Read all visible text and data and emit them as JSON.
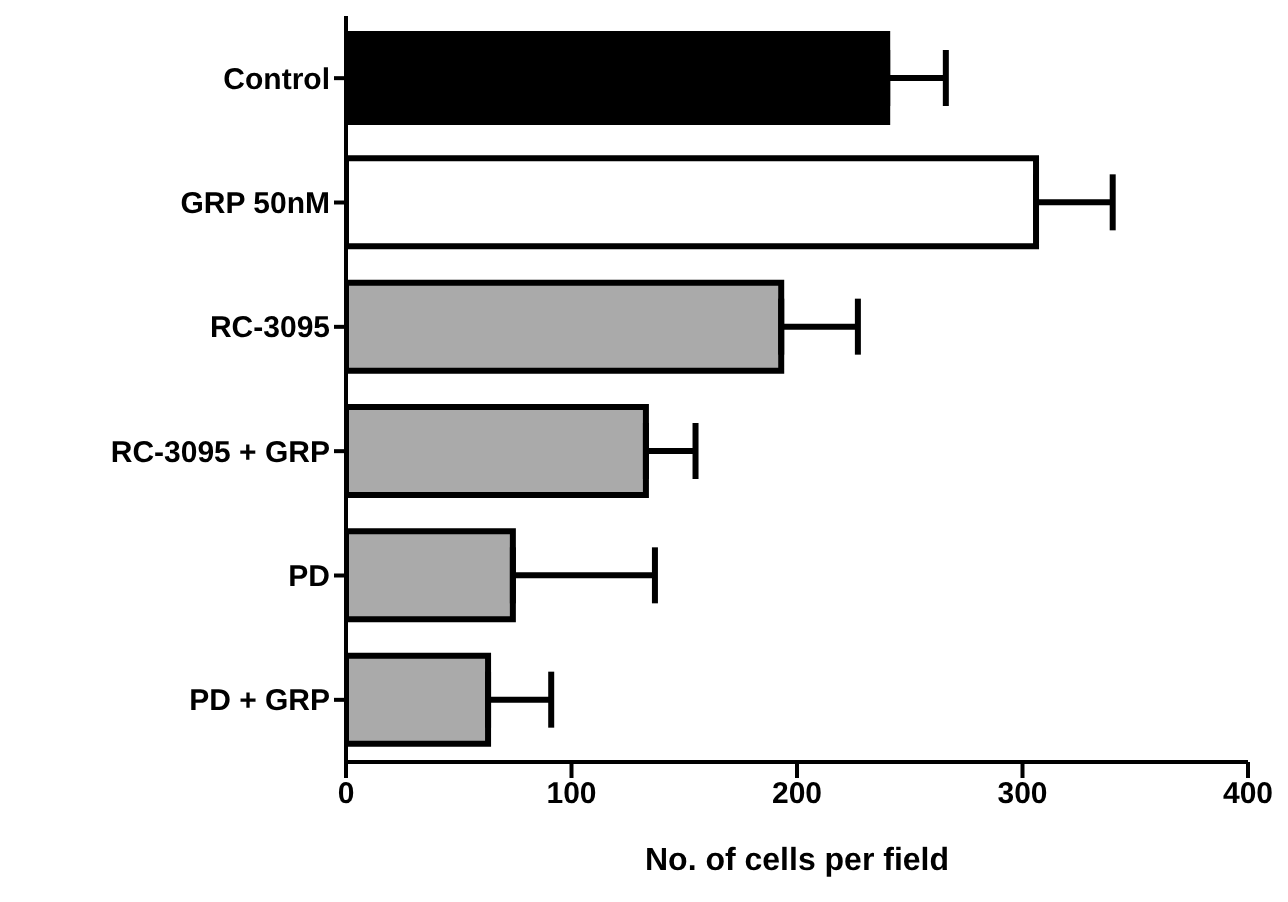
{
  "chart_data": {
    "type": "bar",
    "orientation": "horizontal",
    "xlabel": "No. of cells per field",
    "categories": [
      "Control",
      "GRP 50nM",
      "RC-3095",
      "RC-3095 + GRP",
      "PD",
      "PD + GRP"
    ],
    "values": [
      240,
      306,
      193,
      133,
      74,
      63
    ],
    "errors": [
      [
        240,
        266
      ],
      [
        306,
        340
      ],
      [
        193,
        227
      ],
      [
        133,
        155
      ],
      [
        74,
        137
      ],
      [
        63,
        91
      ]
    ],
    "colors": [
      "#000000",
      "#ffffff",
      "#aaaaaa",
      "#aaaaaa",
      "#aaaaaa",
      "#aaaaaa"
    ],
    "xlim": [
      0,
      400
    ],
    "xticks": [
      0,
      100,
      200,
      300,
      400
    ],
    "grid": false,
    "legend": false
  }
}
